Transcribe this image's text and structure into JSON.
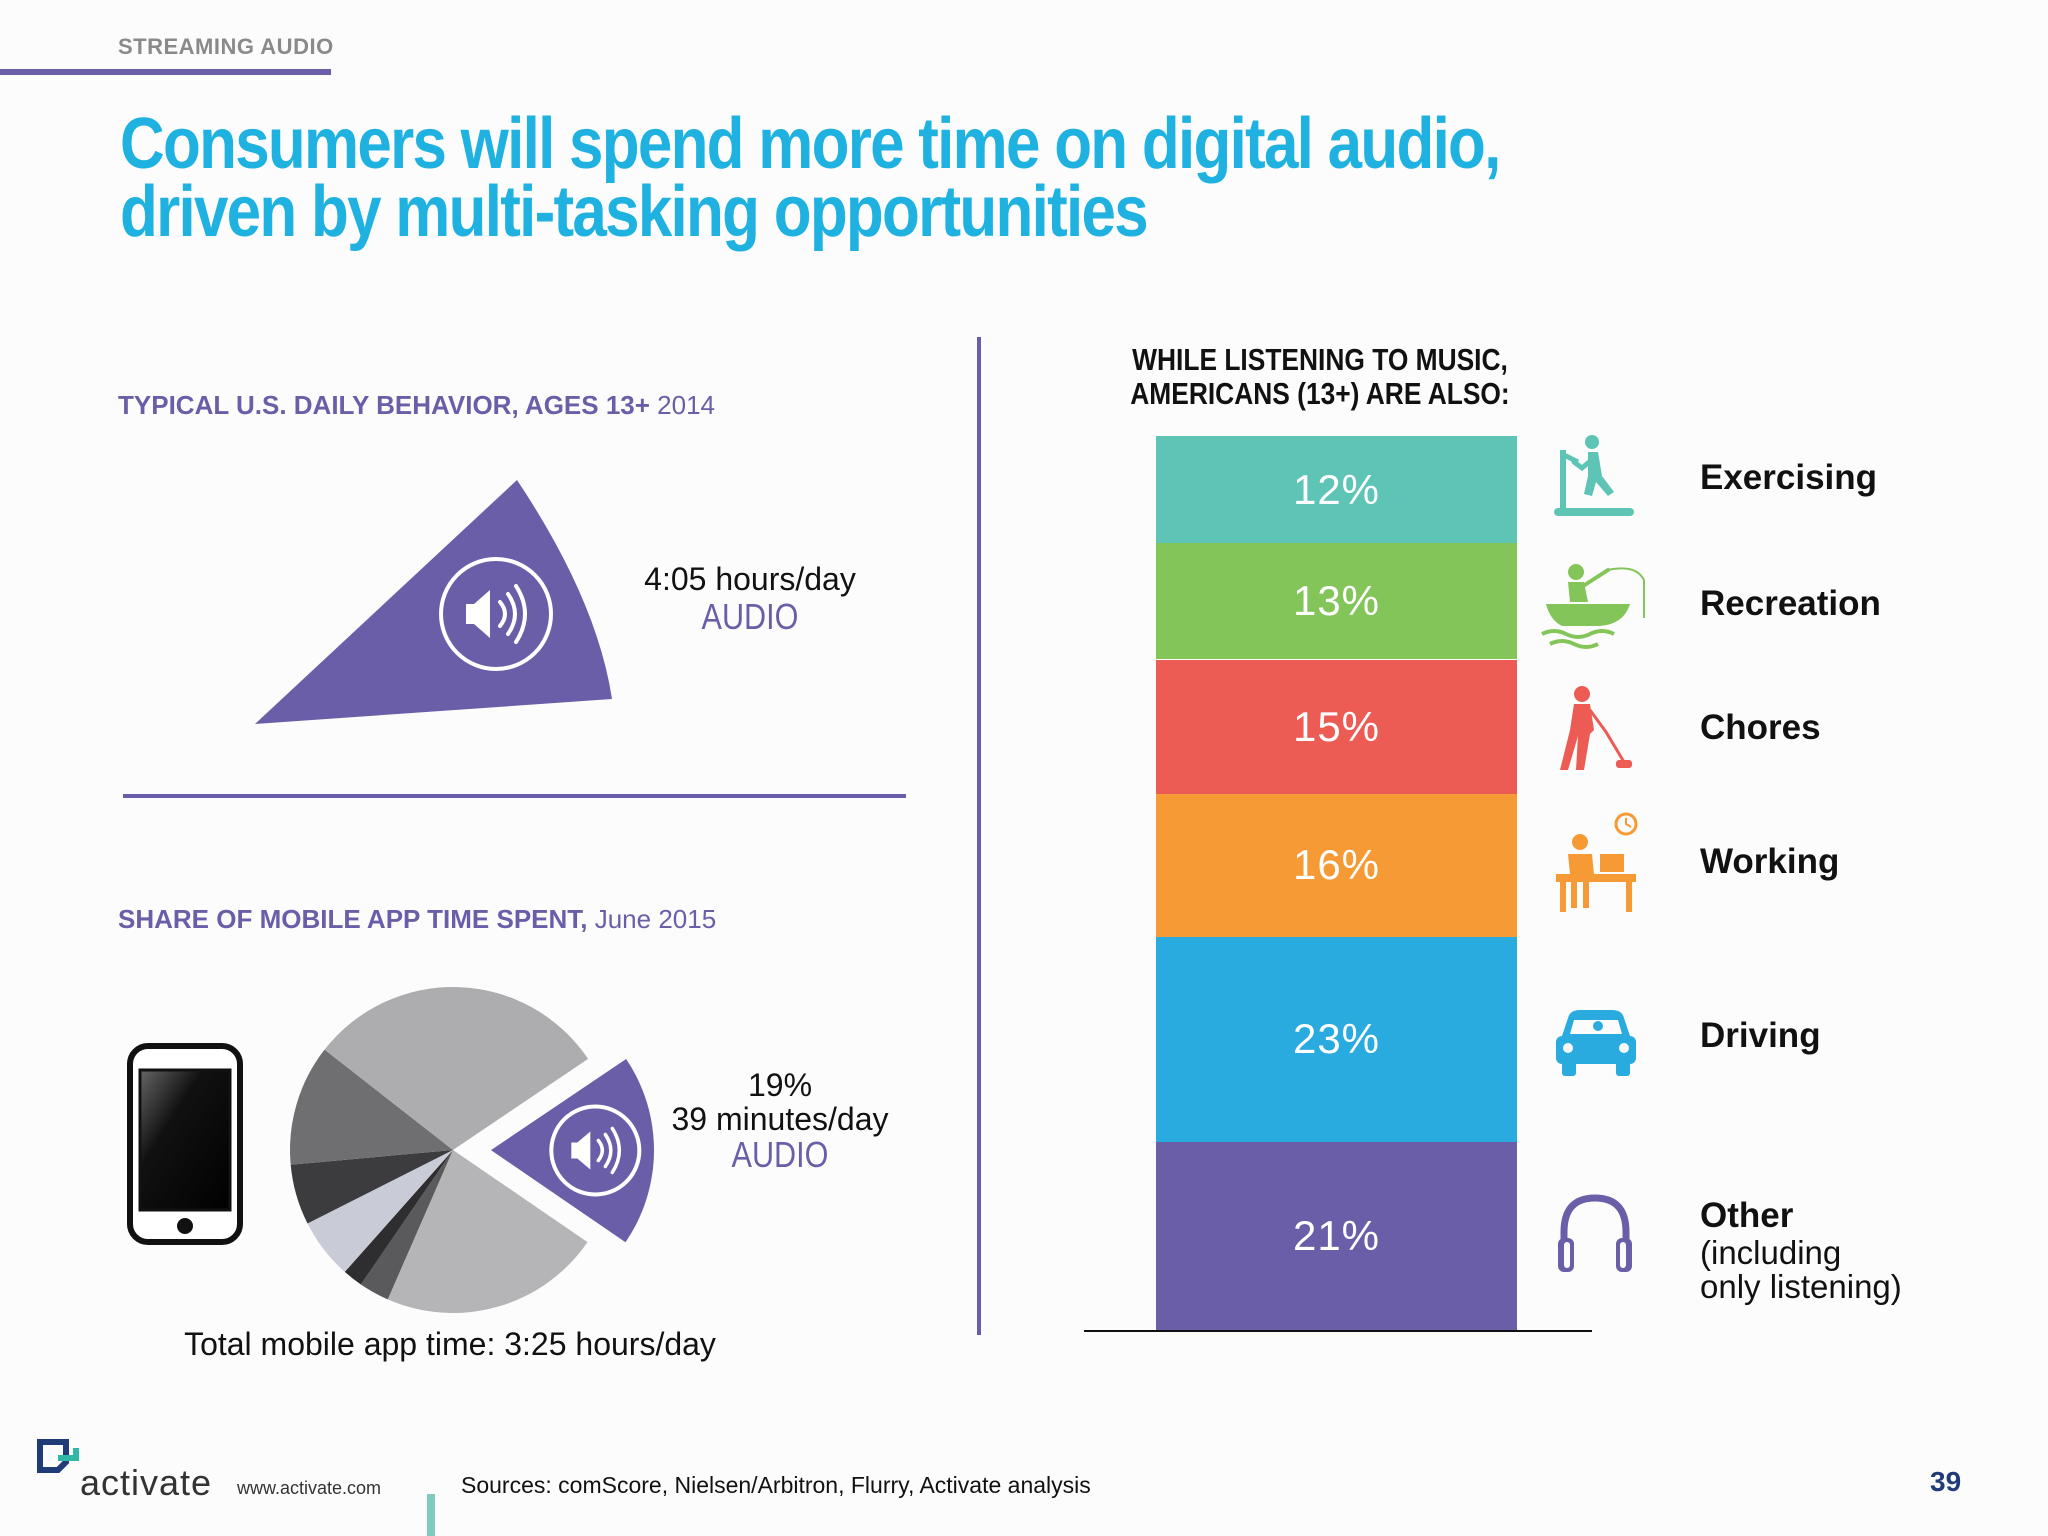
{
  "section_label": "STREAMING AUDIO",
  "headline": "Consumers will spend more time on digital audio, driven by multi-tasking opportunities",
  "left_top": {
    "subhead_bold": "TYPICAL U.S. DAILY BEHAVIOR, AGES 13+",
    "subhead_normal": " 2014",
    "hours": "4:05 hours/day",
    "audio_label": "AUDIO"
  },
  "left_bottom": {
    "subhead_bold": "SHARE OF MOBILE APP TIME SPENT,",
    "subhead_normal": " June 2015",
    "percent": "19%",
    "minutes": "39 minutes/day",
    "audio_label": "AUDIO",
    "total": "Total mobile app time: 3:25 hours/day"
  },
  "right": {
    "heading_line1": "WHILE LISTENING TO MUSIC,",
    "heading_line2": "AMERICANS (13+) ARE ALSO:"
  },
  "chart_data": [
    {
      "type": "pie",
      "title": "SHARE OF MOBILE APP TIME SPENT, June 2015",
      "highlighted_slice": {
        "name": "AUDIO",
        "value": 19,
        "unit": "%"
      },
      "slices": [
        {
          "value": 19,
          "color": "#6b5ea8"
        },
        {
          "value": 22,
          "color": "#b5b5b8"
        },
        {
          "value": 3,
          "color": "#5a5a5c"
        },
        {
          "value": 2,
          "color": "#2e2e30"
        },
        {
          "value": 6,
          "color": "#c9ccd6"
        },
        {
          "value": 6,
          "color": "#3c3c3e"
        },
        {
          "value": 12,
          "color": "#6f6f71"
        },
        {
          "value": 30,
          "color": "#adadaf"
        }
      ]
    },
    {
      "type": "bar",
      "stacked": true,
      "title": "WHILE LISTENING TO MUSIC, AMERICANS (13+) ARE ALSO:",
      "categories": [
        "Exercising",
        "Recreation",
        "Chores",
        "Working",
        "Driving",
        "Other (including only listening)"
      ],
      "values": [
        12,
        13,
        15,
        16,
        23,
        21
      ],
      "labels": [
        "12%",
        "13%",
        "15%",
        "16%",
        "23%",
        "21%"
      ],
      "colors": [
        "#5ec4b6",
        "#84c55a",
        "#ec5b54",
        "#f59a34",
        "#29abdf",
        "#6b5ea8"
      ],
      "unit": "%"
    }
  ],
  "legend": [
    {
      "label": "Exercising",
      "icon": "treadmill-icon",
      "color": "#5ec4b6"
    },
    {
      "label": "Recreation",
      "icon": "fishing-boat-icon",
      "color": "#84c55a"
    },
    {
      "label": "Chores",
      "icon": "vacuum-person-icon",
      "color": "#ec5b54"
    },
    {
      "label": "Working",
      "icon": "desk-worker-icon",
      "color": "#f59a34"
    },
    {
      "label": "Driving",
      "icon": "car-icon",
      "color": "#29abdf"
    },
    {
      "label": "Other",
      "sublabel_1": "(including",
      "sublabel_2": "only listening)",
      "icon": "headphones-icon",
      "color": "#6b5ea8"
    }
  ],
  "footer": {
    "brand": "activate",
    "url": "www.activate.com",
    "sources": "Sources: comScore, Nielsen/Arbitron, Flurry, Activate analysis",
    "page_number": "39"
  }
}
